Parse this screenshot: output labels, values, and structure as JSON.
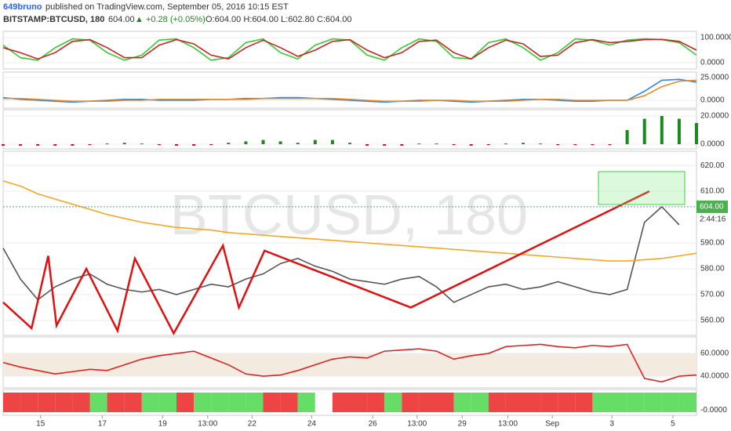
{
  "header": {
    "author": "649bruno",
    "published": "published on TradingView.com, September 05, 2016 10:15 EST",
    "symbol": "BITSTAMP:BTCUSD, 180",
    "price": "604.00",
    "change": "▲ +0.28 (+0.05%)",
    "ohlc": "O:604.00 H:604.00 L:602.80 C:604.00"
  },
  "chart_data": [
    {
      "type": "line",
      "xlim": [
        0,
        100
      ],
      "x": [
        0,
        2.5,
        5,
        7.5,
        10,
        12.5,
        15,
        17.5,
        20,
        22.5,
        25,
        27.5,
        30,
        32.5,
        35,
        37.5,
        40,
        42.5,
        45,
        47.5,
        50,
        52.5,
        55,
        57.5,
        60,
        62.5,
        65,
        67.5,
        70,
        72.5,
        75,
        77.5,
        80,
        82.5,
        85,
        87.5,
        90,
        92.5,
        95,
        97.5,
        100
      ],
      "ylim": [
        -25,
        125
      ],
      "yticks": [
        {
          "value": 100,
          "label": "100.0000"
        },
        {
          "value": 0,
          "label": "0.0000"
        }
      ],
      "series": [
        {
          "color": "#33cc33",
          "values": [
            70,
            20,
            10,
            60,
            95,
            90,
            40,
            10,
            30,
            90,
            95,
            60,
            10,
            20,
            80,
            95,
            40,
            15,
            70,
            95,
            90,
            30,
            10,
            60,
            95,
            85,
            20,
            15,
            80,
            95,
            60,
            10,
            40,
            95,
            90,
            70,
            90,
            95,
            92,
            80,
            30
          ]
        },
        {
          "color": "#cc2222",
          "values": [
            60,
            40,
            15,
            40,
            85,
            92,
            60,
            20,
            20,
            70,
            92,
            75,
            30,
            15,
            60,
            90,
            60,
            25,
            50,
            85,
            92,
            50,
            20,
            40,
            85,
            90,
            40,
            15,
            60,
            90,
            75,
            25,
            30,
            80,
            92,
            80,
            85,
            92,
            93,
            85,
            50
          ]
        }
      ]
    },
    {
      "type": "line",
      "xlim": [
        0,
        100
      ],
      "x": [
        0,
        2.5,
        5,
        7.5,
        10,
        12.5,
        15,
        17.5,
        20,
        22.5,
        25,
        27.5,
        30,
        32.5,
        35,
        37.5,
        40,
        42.5,
        45,
        47.5,
        50,
        52.5,
        55,
        57.5,
        60,
        62.5,
        65,
        67.5,
        70,
        72.5,
        75,
        77.5,
        80,
        82.5,
        85,
        87.5,
        90,
        92.5,
        95,
        97.5,
        100
      ],
      "ylim": [
        -8.6,
        31
      ],
      "yticks": [
        {
          "value": 25,
          "label": "25.0000"
        },
        {
          "value": 0,
          "label": "0.0000"
        }
      ],
      "series": [
        {
          "color": "#3388dd",
          "values": [
            3,
            1,
            0,
            -1,
            -2,
            -1,
            0,
            1,
            1,
            0,
            0,
            0,
            1,
            1,
            2,
            2,
            3,
            3,
            2,
            1,
            0,
            -1,
            -2,
            -1,
            0,
            0,
            -1,
            -2,
            -1,
            0,
            1,
            1,
            0,
            -1,
            -1,
            0,
            0,
            10,
            22,
            23,
            20
          ]
        },
        {
          "color": "#ee8822",
          "values": [
            2,
            2,
            1,
            0,
            -1,
            -1,
            -1,
            0,
            0,
            1,
            1,
            1,
            1,
            1,
            1,
            2,
            2,
            2,
            2,
            2,
            1,
            0,
            -1,
            -1,
            -1,
            0,
            0,
            -1,
            -1,
            -1,
            0,
            1,
            1,
            0,
            0,
            0,
            0,
            5,
            15,
            21,
            22
          ]
        }
      ]
    },
    {
      "type": "histogram",
      "xlim": [
        0,
        100
      ],
      "up_color": "#1a8a1a",
      "down_color": "#cc0000",
      "x": [
        0,
        2.5,
        5,
        7.5,
        10,
        12.5,
        15,
        17.5,
        20,
        22.5,
        25,
        27.5,
        30,
        32.5,
        35,
        37.5,
        40,
        42.5,
        45,
        47.5,
        50,
        52.5,
        55,
        57.5,
        60,
        62.5,
        65,
        67.5,
        70,
        72.5,
        75,
        77.5,
        80,
        82.5,
        85,
        87.5,
        90,
        92.5,
        95,
        97.5,
        100
      ],
      "ylim": [
        -3.3,
        24.4
      ],
      "yticks": [
        {
          "value": 20,
          "label": "20.0000"
        },
        {
          "value": 0,
          "label": "0.0000"
        }
      ],
      "values": [
        -1,
        -1,
        -1,
        -1,
        -1,
        -0.5,
        0.5,
        1,
        0.5,
        -0.5,
        -1,
        -1,
        -0.5,
        1,
        2,
        3,
        2,
        1,
        3,
        3,
        1,
        -1,
        -1,
        -1,
        0.5,
        0.5,
        -0.5,
        -1,
        -0.5,
        0.5,
        1,
        0.5,
        -0.5,
        -0.5,
        -0.3,
        -0.2,
        10,
        18,
        20,
        18,
        15
      ]
    },
    {
      "type": "price",
      "xlim": [
        0,
        100
      ],
      "watermark": "BTCUSD, 180",
      "x": [
        0,
        2.5,
        5,
        7.5,
        10,
        12.5,
        15,
        17.5,
        20,
        22.5,
        25,
        27.5,
        30,
        32.5,
        35,
        37.5,
        40,
        42.5,
        45,
        47.5,
        50,
        52.5,
        55,
        57.5,
        60,
        62.5,
        65,
        67.5,
        70,
        72.5,
        75,
        77.5,
        80,
        82.5,
        85,
        87.5,
        90,
        92.5,
        95,
        97.5,
        100
      ],
      "ylim": [
        554.2,
        625.5
      ],
      "yticks": [
        {
          "value": 620,
          "label": "620.00"
        },
        {
          "value": 610,
          "label": "610.00"
        },
        {
          "value": 590,
          "label": "590.00"
        },
        {
          "value": 580,
          "label": "580.00"
        },
        {
          "value": 570,
          "label": "570.00"
        },
        {
          "value": 560,
          "label": "560.00"
        }
      ],
      "last_price": {
        "value": 604,
        "label": "604.00"
      },
      "countdown": "2:44:16",
      "series": [
        {
          "color": "#555555",
          "values": [
            588,
            576,
            568,
            573,
            576,
            578,
            574,
            572,
            571,
            572,
            570,
            572,
            574,
            573,
            576,
            578,
            582,
            584,
            581,
            579,
            576,
            575,
            574,
            576,
            577,
            573,
            567,
            570,
            573,
            574,
            572,
            573,
            575,
            573,
            571,
            570,
            572,
            598,
            604,
            597,
            null
          ]
        },
        {
          "color": "#f5a623",
          "values": [
            614,
            612,
            609,
            607,
            605,
            603,
            601,
            599.5,
            598,
            597,
            596,
            595.5,
            595,
            594,
            593.5,
            593,
            592.5,
            592,
            591.5,
            591,
            590.5,
            590,
            589.5,
            589,
            588.5,
            588,
            587.5,
            587,
            586.5,
            586,
            585.5,
            585,
            584.5,
            584,
            583.5,
            583,
            583,
            583.5,
            584,
            585,
            586
          ]
        },
        {
          "color": "#e01010",
          "x": [
            0,
            4.1,
            6.5,
            7.7,
            12,
            16.5,
            19,
            24.6,
            31.7,
            34,
            37.7,
            58.8,
            93.2
          ],
          "values": [
            567,
            557,
            585,
            558,
            580,
            556,
            584,
            555,
            589,
            565,
            587,
            565,
            610
          ]
        }
      ]
    },
    {
      "type": "line",
      "xlim": [
        0,
        100
      ],
      "band_color": "#f3ebe0",
      "x": [
        0,
        2.5,
        5,
        7.5,
        10,
        12.5,
        15,
        17.5,
        20,
        22.5,
        25,
        27.5,
        30,
        32.5,
        35,
        37.5,
        40,
        42.5,
        45,
        47.5,
        50,
        52.5,
        55,
        57.5,
        60,
        62.5,
        65,
        67.5,
        70,
        72.5,
        75,
        77.5,
        80,
        82.5,
        85,
        87.5,
        90,
        92.5,
        95,
        97.5,
        100
      ],
      "ylim": [
        29.7,
        74.5
      ],
      "yticks": [
        {
          "value": 60,
          "label": "60.0000"
        },
        {
          "value": 40,
          "label": "40.0000"
        }
      ],
      "series": [
        {
          "color": "#dd2222",
          "values": [
            52,
            48,
            45,
            42,
            44,
            46,
            45,
            50,
            55,
            58,
            60,
            62,
            56,
            50,
            42,
            40,
            41,
            45,
            50,
            55,
            57,
            56,
            62,
            63,
            64,
            62,
            55,
            58,
            60,
            66,
            67,
            68,
            66,
            65,
            67,
            66,
            68,
            38,
            35,
            40,
            41
          ]
        }
      ]
    },
    {
      "type": "signal",
      "xlim": [
        0,
        100
      ],
      "x": [
        0,
        2.5,
        5,
        7.5,
        10,
        12.5,
        15,
        17.5,
        20,
        22.5,
        25,
        27.5,
        30,
        32.5,
        35,
        37.5,
        40,
        42.5,
        45,
        47.5,
        50,
        52.5,
        55,
        57.5,
        60,
        62.5,
        65,
        67.5,
        70,
        72.5,
        75,
        77.5,
        80,
        82.5,
        85,
        87.5,
        90,
        92.5,
        95,
        97.5
      ],
      "ylim": [
        -0.5,
        2
      ],
      "yticks": [
        {
          "value": 0,
          "label": "-0.0000"
        }
      ],
      "values": [
        1.7,
        1.7,
        1.7,
        1.7,
        1.7,
        1.7,
        1.7,
        1.7,
        1.7,
        1.7,
        1.7,
        1.7,
        1.7,
        1.7,
        1.7,
        1.7,
        1.7,
        1.7,
        1.7,
        1.7,
        1.7,
        1.7,
        1.7,
        1.7,
        1.7,
        1.7,
        1.7,
        1.7,
        1.7,
        1.7,
        1.7,
        1.7,
        1.7,
        1.7,
        1.7,
        1.7,
        1.7,
        1.7,
        1.7,
        1.7
      ],
      "colors": [
        "#ee4444",
        "#ee4444",
        "#ee4444",
        "#ee4444",
        "#ee4444",
        "#66dd66",
        "#ee4444",
        "#ee4444",
        "#66dd66",
        "#66dd66",
        "#ee4444",
        "#66dd66",
        "#66dd66",
        "#66dd66",
        "#66dd66",
        "#ee4444",
        "#ee4444",
        "#66dd66",
        "#ffffff",
        "#ee4444",
        "#ee4444",
        "#ee4444",
        "#66dd66",
        "#ee4444",
        "#ee4444",
        "#ee4444",
        "#66dd66",
        "#66dd66",
        "#ee4444",
        "#ee4444",
        "#ee4444",
        "#ee4444",
        "#ee4444",
        "#ee4444",
        "#66dd66",
        "#66dd66",
        "#66dd66",
        "#66dd66",
        "#66dd66",
        "#66dd66"
      ],
      "xticks": [
        {
          "value": 5.4,
          "label": "15"
        },
        {
          "value": 14.3,
          "label": "17"
        },
        {
          "value": 23,
          "label": "19"
        },
        {
          "value": 29.5,
          "label": "13:00"
        },
        {
          "value": 35.9,
          "label": "22"
        },
        {
          "value": 44.5,
          "label": "24"
        },
        {
          "value": 53.3,
          "label": "26"
        },
        {
          "value": 59.7,
          "label": "13:00"
        },
        {
          "value": 66.2,
          "label": "29"
        },
        {
          "value": 72.8,
          "label": "13:00"
        },
        {
          "value": 79.2,
          "label": "Sep"
        },
        {
          "value": 87.8,
          "label": "3"
        },
        {
          "value": 96.6,
          "label": "5"
        }
      ]
    }
  ]
}
